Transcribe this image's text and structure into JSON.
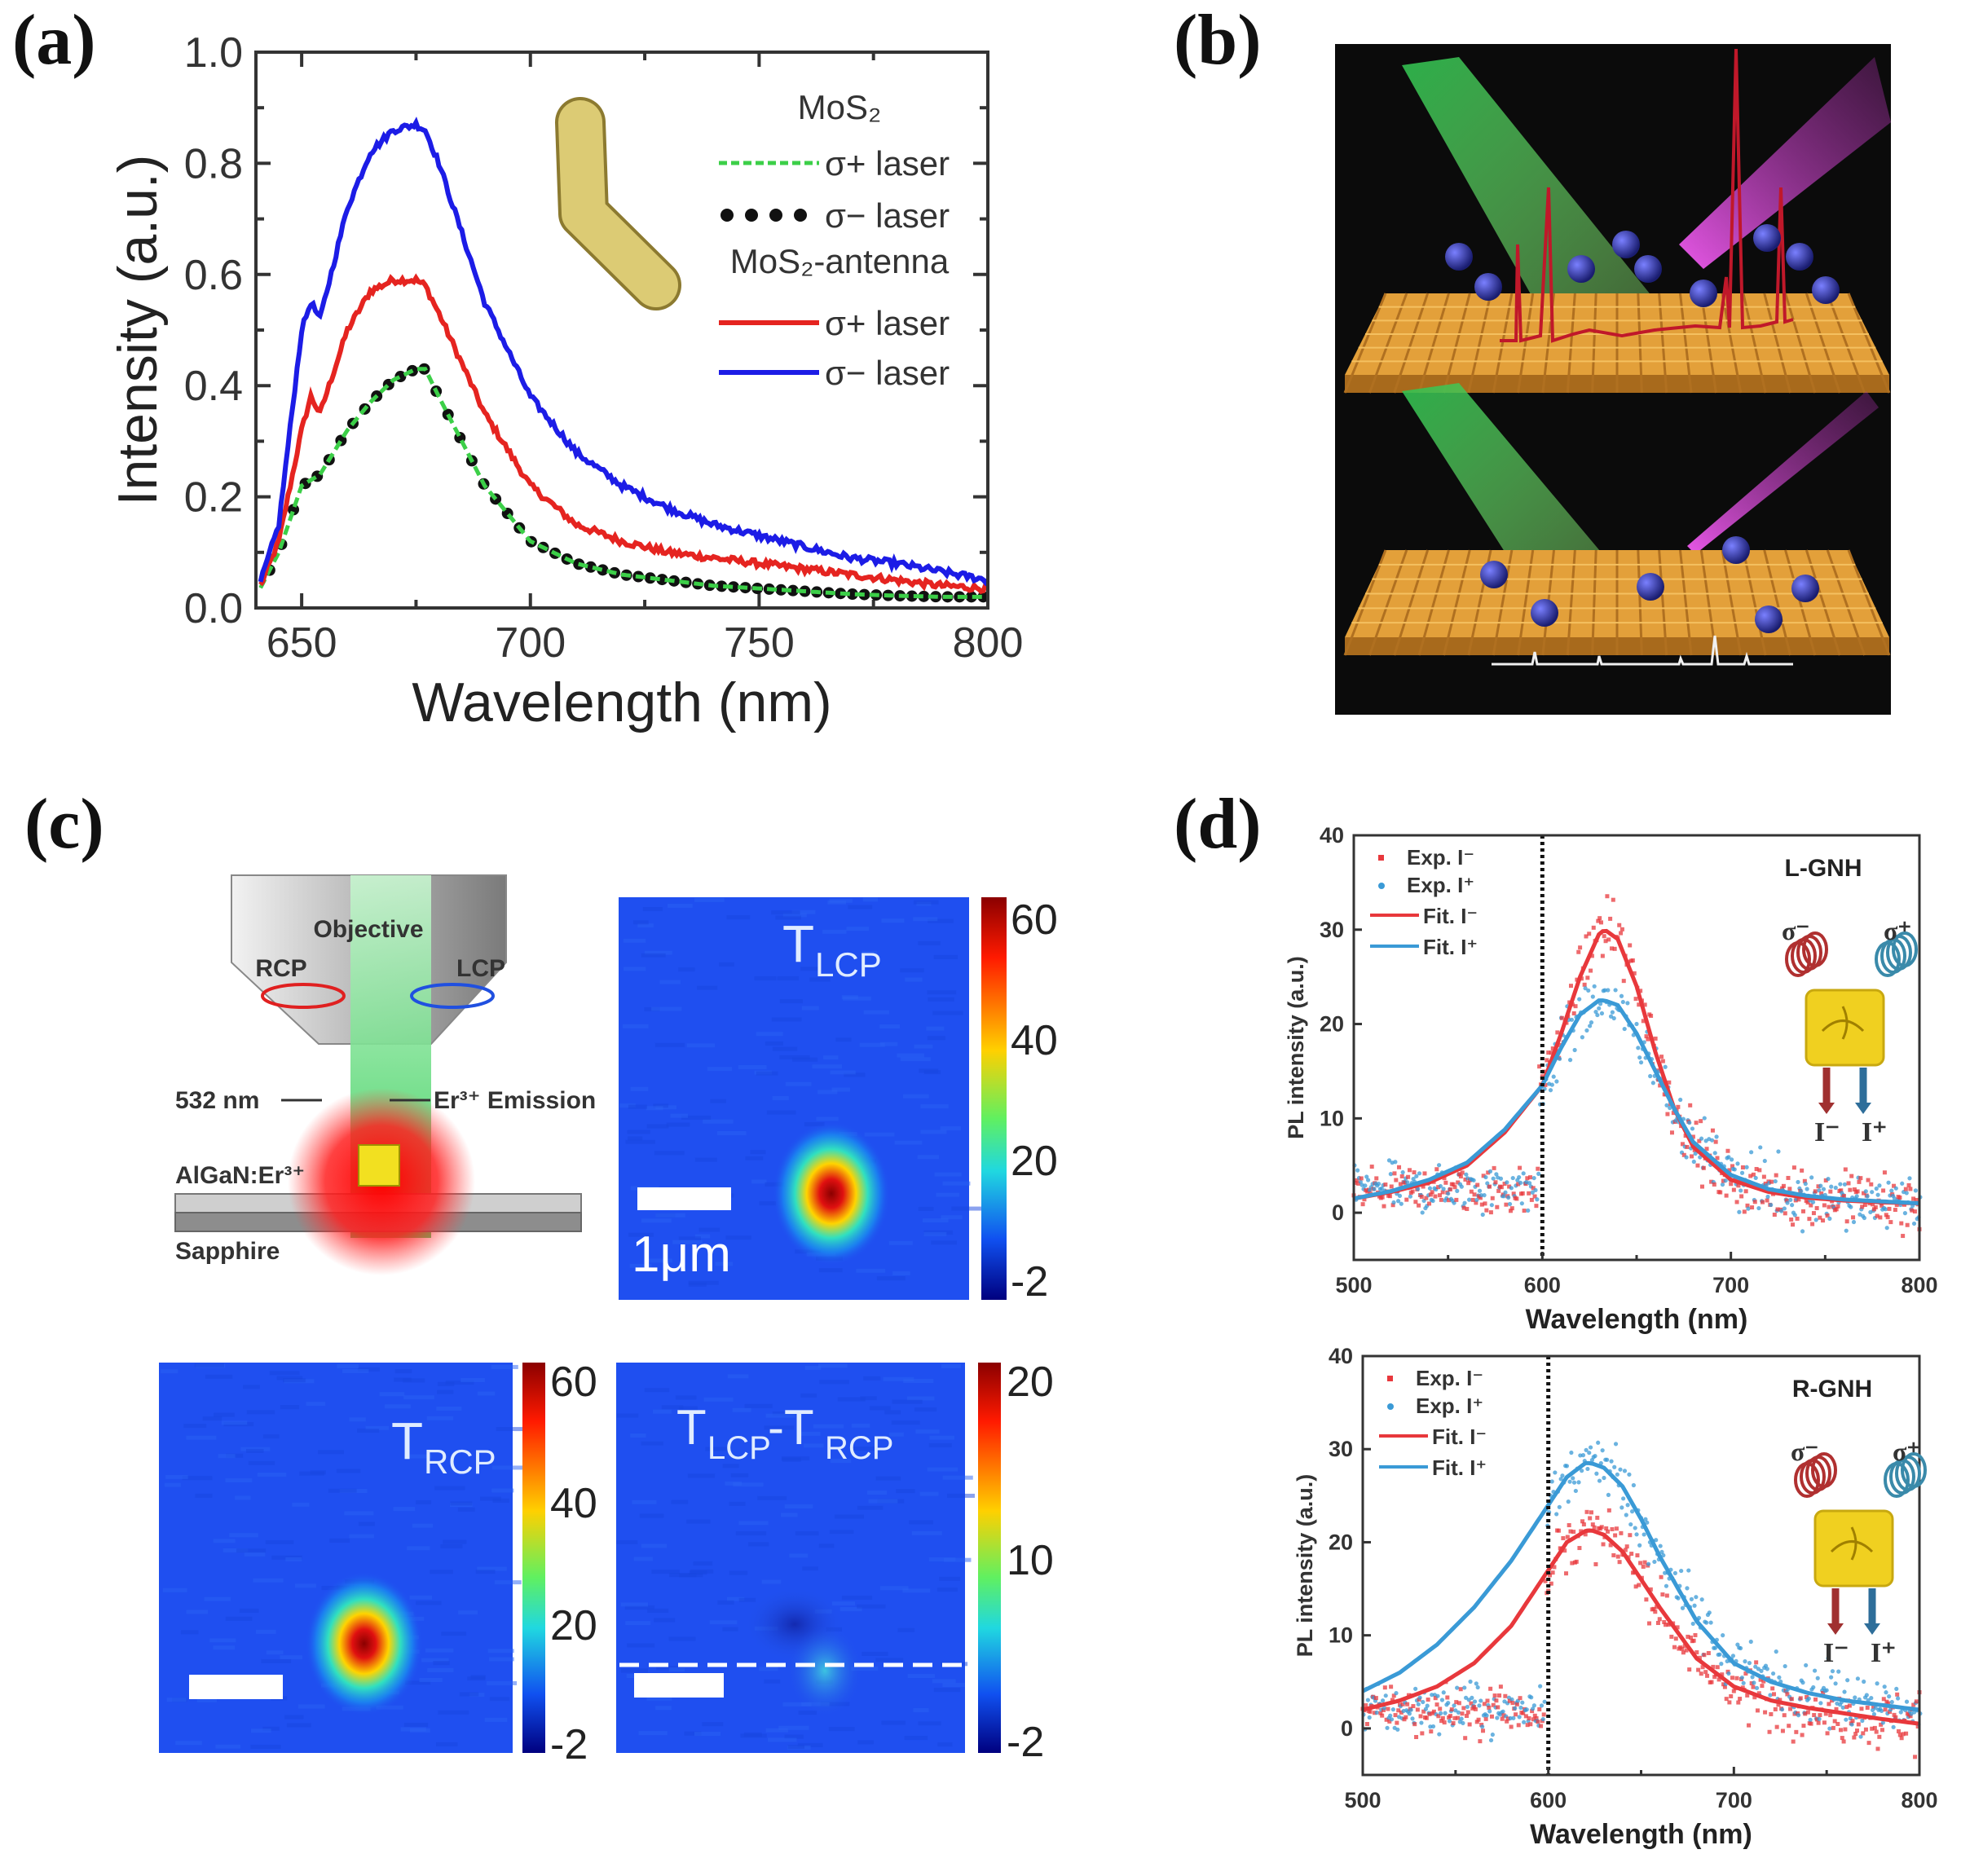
{
  "panel_labels": {
    "a": "(a)",
    "b": "(b)",
    "c": "(c)",
    "d": "(d)"
  },
  "colors": {
    "blue": "#1c1ce6",
    "red": "#e52420",
    "green": "#3ccf48",
    "black": "#111111",
    "d_red": "#e8383c",
    "d_blue": "#3a9ad6",
    "heat_base": "#1f4ff0"
  },
  "chart_data": [
    {
      "id": "a",
      "type": "line",
      "xlabel": "Wavelength (nm)",
      "ylabel": "Intensity (a.u.)",
      "xlim": [
        640,
        800
      ],
      "ylim": [
        0,
        1.0
      ],
      "xticks": [
        "650",
        "700",
        "750",
        "800"
      ],
      "yticks": [
        "0.0",
        "0.2",
        "0.4",
        "0.6",
        "0.8",
        "1.0"
      ],
      "legend": {
        "group1": "MoS₂",
        "group2": "MoS₂-antenna",
        "entries": [
          "σ+ laser",
          "σ− laser",
          "σ+ laser",
          "σ− laser"
        ]
      },
      "x": [
        640,
        645,
        650,
        652,
        654,
        660,
        665,
        670,
        675,
        677,
        680,
        690,
        700,
        710,
        720,
        730,
        740,
        750,
        760,
        770,
        780,
        790,
        800
      ],
      "series": [
        {
          "name": "MoS₂ σ+ laser",
          "style": "green-dashed",
          "values": [
            0.02,
            0.1,
            0.22,
            0.23,
            0.24,
            0.32,
            0.37,
            0.41,
            0.43,
            0.43,
            0.38,
            0.22,
            0.12,
            0.08,
            0.06,
            0.05,
            0.04,
            0.035,
            0.03,
            0.025,
            0.022,
            0.02,
            0.02
          ]
        },
        {
          "name": "MoS₂ σ− laser",
          "style": "black-dots",
          "values": [
            0.02,
            0.1,
            0.22,
            0.23,
            0.24,
            0.32,
            0.37,
            0.41,
            0.43,
            0.43,
            0.38,
            0.22,
            0.12,
            0.08,
            0.06,
            0.05,
            0.04,
            0.035,
            0.03,
            0.025,
            0.022,
            0.02,
            0.02
          ]
        },
        {
          "name": "MoS₂-antenna σ+ laser",
          "style": "red",
          "values": [
            0.02,
            0.12,
            0.32,
            0.38,
            0.35,
            0.5,
            0.57,
            0.59,
            0.59,
            0.58,
            0.53,
            0.35,
            0.22,
            0.15,
            0.12,
            0.1,
            0.09,
            0.08,
            0.07,
            0.06,
            0.05,
            0.04,
            0.035
          ]
        },
        {
          "name": "MoS₂-antenna σ− laser",
          "style": "blue",
          "values": [
            0.02,
            0.15,
            0.5,
            0.55,
            0.52,
            0.72,
            0.82,
            0.86,
            0.87,
            0.86,
            0.8,
            0.55,
            0.38,
            0.28,
            0.22,
            0.18,
            0.15,
            0.13,
            0.11,
            0.09,
            0.08,
            0.065,
            0.05
          ]
        }
      ]
    },
    {
      "id": "d-top",
      "type": "scatter",
      "title": "L-GNH",
      "xlabel": "Wavelength (nm)",
      "ylabel": "PL intensity (a.u.)",
      "xlim": [
        500,
        800
      ],
      "ylim": [
        -5,
        40
      ],
      "xticks": [
        "500",
        "600",
        "700",
        "800"
      ],
      "yticks": [
        "0",
        "10",
        "20",
        "30",
        "40"
      ],
      "vline": 600,
      "legend": [
        "Exp. I⁻",
        "Exp. I⁺",
        "Fit. I⁻",
        "Fit. I⁺"
      ],
      "inset": {
        "sigma_minus": "σ⁻",
        "sigma_plus": "σ⁺",
        "i_minus": "I⁻",
        "i_plus": "I⁺"
      },
      "x": [
        500,
        520,
        540,
        560,
        580,
        600,
        610,
        620,
        630,
        633,
        640,
        650,
        660,
        670,
        680,
        700,
        720,
        740,
        760,
        780,
        800
      ],
      "series": [
        {
          "name": "Fit. I⁻",
          "values": [
            1.5,
            2.2,
            3.2,
            5,
            8.5,
            13.5,
            19,
            25,
            29.5,
            30,
            29,
            24,
            17,
            11,
            7,
            3.5,
            2.2,
            1.6,
            1.3,
            1.1,
            1
          ]
        },
        {
          "name": "Fit. I⁺",
          "values": [
            1.5,
            2.3,
            3.5,
            5.3,
            8.8,
            13.5,
            17.5,
            21,
            22.5,
            22.5,
            22,
            19,
            15,
            11,
            7.5,
            4,
            2.5,
            1.8,
            1.4,
            1.2,
            1
          ]
        }
      ],
      "exp_background": 2.5
    },
    {
      "id": "d-bottom",
      "type": "scatter",
      "title": "R-GNH",
      "xlabel": "Wavelength (nm)",
      "ylabel": "PL intensity (a.u.)",
      "xlim": [
        500,
        800
      ],
      "ylim": [
        -5,
        40
      ],
      "xticks": [
        "500",
        "600",
        "700",
        "800"
      ],
      "yticks": [
        "0",
        "10",
        "20",
        "30",
        "40"
      ],
      "vline": 600,
      "legend": [
        "Exp. I⁻",
        "Exp. I⁺",
        "Fit. I⁻",
        "Fit. I⁺"
      ],
      "inset": {
        "sigma_minus": "σ⁻",
        "sigma_plus": "σ⁺",
        "i_minus": "I⁻",
        "i_plus": "I⁺"
      },
      "x": [
        500,
        520,
        540,
        560,
        580,
        600,
        610,
        620,
        623,
        630,
        640,
        650,
        660,
        680,
        700,
        720,
        740,
        760,
        780,
        800
      ],
      "series": [
        {
          "name": "Fit. I⁻",
          "values": [
            2,
            3,
            4.5,
            7,
            11,
            17,
            20,
            21.2,
            21.3,
            20.8,
            19,
            16,
            13,
            7.5,
            4.5,
            3,
            2.2,
            1.6,
            1,
            0.5
          ]
        },
        {
          "name": "Fit. I⁺",
          "values": [
            4,
            6,
            9,
            13,
            18,
            24,
            27,
            28.5,
            28.5,
            28,
            26,
            22.5,
            18.5,
            11.5,
            7,
            5,
            3.8,
            3,
            2.5,
            2
          ]
        }
      ],
      "exp_background": 2.0
    },
    {
      "id": "c-maps",
      "type": "heatmap",
      "maps": [
        {
          "title_main": "T",
          "title_sub": "LCP",
          "colorbar_ticks": [
            "60",
            "40",
            "20",
            "-2"
          ],
          "scale_bar_label": "1μm"
        },
        {
          "title_main": "T",
          "title_sub": "RCP",
          "colorbar_ticks": [
            "60",
            "40",
            "20",
            "-2"
          ]
        },
        {
          "title_main": "T",
          "title_sub": "LCP",
          "title_main2": "-T",
          "title_sub2": "RCP",
          "colorbar_ticks": [
            "20",
            "10",
            "-2"
          ]
        }
      ]
    }
  ],
  "schematic": {
    "objective": "Objective",
    "rcp": "RCP",
    "lcp": "LCP",
    "laser": "532 nm",
    "emission": "Er³⁺ Emission",
    "layer1": "AlGaN:Er³⁺",
    "layer2": "Sapphire"
  }
}
